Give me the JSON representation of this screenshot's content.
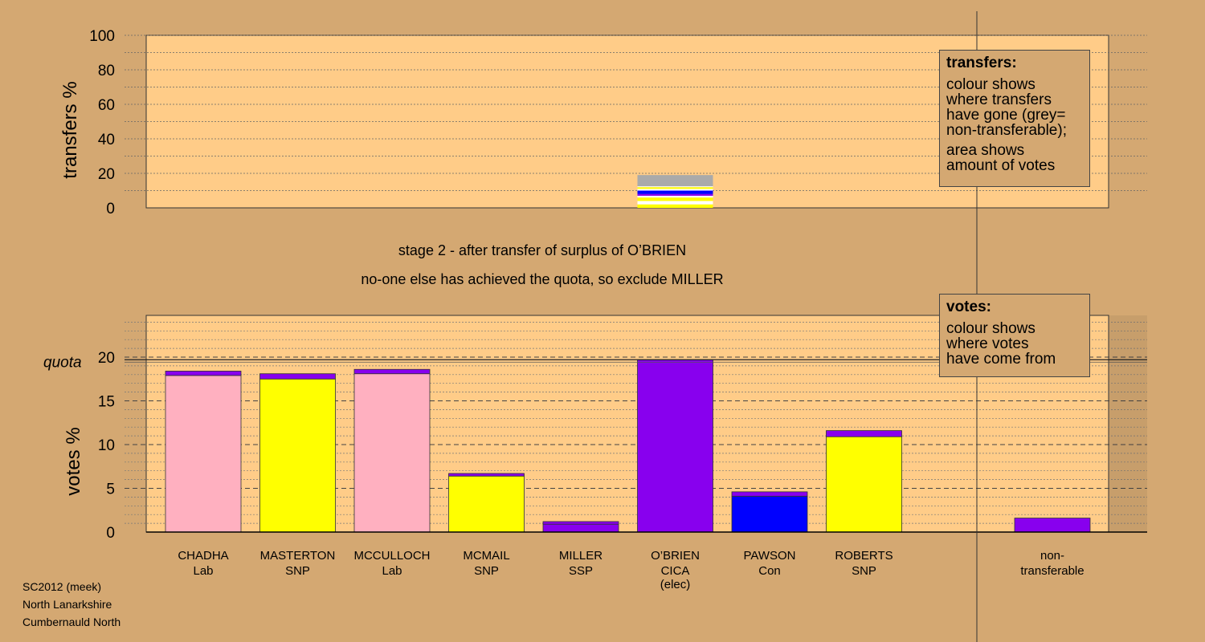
{
  "chart_data": [
    {
      "type": "bar",
      "name": "transfers",
      "ylabel": "transfers %",
      "ylim": [
        0,
        100
      ],
      "yticks": [
        0,
        20,
        40,
        60,
        80,
        100
      ],
      "x_index": 5,
      "segments": [
        {
          "color": "#ffff00",
          "from": 0,
          "to": 2
        },
        {
          "color": "#ffffff",
          "from": 2,
          "to": 4
        },
        {
          "color": "#ffff00",
          "from": 4,
          "to": 6
        },
        {
          "color": "#ffffff",
          "from": 6,
          "to": 7
        },
        {
          "color": "#8800ee",
          "from": 7,
          "to": 8
        },
        {
          "color": "#0000ff",
          "from": 8,
          "to": 10
        },
        {
          "color": "#ffffff",
          "from": 10,
          "to": 11
        },
        {
          "color": "#ffff00",
          "from": 11,
          "to": 12
        },
        {
          "color": "#ffffff",
          "from": 12,
          "to": 12.5
        },
        {
          "color": "#aaaaaa",
          "from": 12.5,
          "to": 19
        }
      ]
    },
    {
      "type": "bar",
      "name": "votes",
      "ylabel": "votes %",
      "ylim": [
        0,
        25
      ],
      "yticks": [
        0,
        5,
        10,
        15,
        20
      ],
      "quota": 19.7,
      "quota_label": "quota",
      "categories": [
        {
          "name": "CHADHA",
          "party": "Lab",
          "note": "",
          "base": 17.9,
          "base_color": "#ffb0c0",
          "transfer": 0.5
        },
        {
          "name": "MASTERTON",
          "party": "SNP",
          "note": "",
          "base": 17.5,
          "base_color": "#ffff00",
          "transfer": 0.6
        },
        {
          "name": "MCCULLOCH",
          "party": "Lab",
          "note": "",
          "base": 18.1,
          "base_color": "#ffb0c0",
          "transfer": 0.5
        },
        {
          "name": "MCMAIL",
          "party": "SNP",
          "note": "",
          "base": 6.4,
          "base_color": "#ffff00",
          "transfer": 0.3
        },
        {
          "name": "MILLER",
          "party": "SSP",
          "note": "",
          "base": 0.9,
          "base_color": "#8800ee",
          "transfer": 0.3
        },
        {
          "name": "O’BRIEN",
          "party": "CICA",
          "note": "(elec)",
          "base": 19.7,
          "base_color": "#8800ee",
          "transfer": 0
        },
        {
          "name": "PAWSON",
          "party": "Con",
          "note": "",
          "base": 4.1,
          "base_color": "#0000ff",
          "transfer": 0.5
        },
        {
          "name": "ROBERTS",
          "party": "SNP",
          "note": "",
          "base": 10.9,
          "base_color": "#ffff00",
          "transfer": 0.7
        },
        {
          "name": "non-",
          "party": "transferable",
          "note": "",
          "base": 0,
          "base_color": "#8800ee",
          "transfer": 1.6
        }
      ]
    }
  ],
  "stage": {
    "line1": "stage 2 - after transfer of surplus of O’BRIEN",
    "line2": "no-one else has achieved the quota, so exclude MILLER"
  },
  "transfers_box": {
    "title": "transfers:",
    "lines": [
      "colour shows",
      "where transfers",
      "have gone (grey=",
      "non-transferable);"
    ],
    "lines2": [
      "area shows",
      "amount of votes"
    ]
  },
  "votes_box": {
    "title": "votes:",
    "lines": [
      "colour shows",
      "where votes",
      "have come from"
    ]
  },
  "footer": {
    "line1": "SC2012 (meek)",
    "line2": "North Lanarkshire",
    "line3": "Cumbernauld North"
  },
  "colors": {
    "background": "#d4a872",
    "panel": "#ffcc88",
    "transfer_color": "#8800ee"
  }
}
